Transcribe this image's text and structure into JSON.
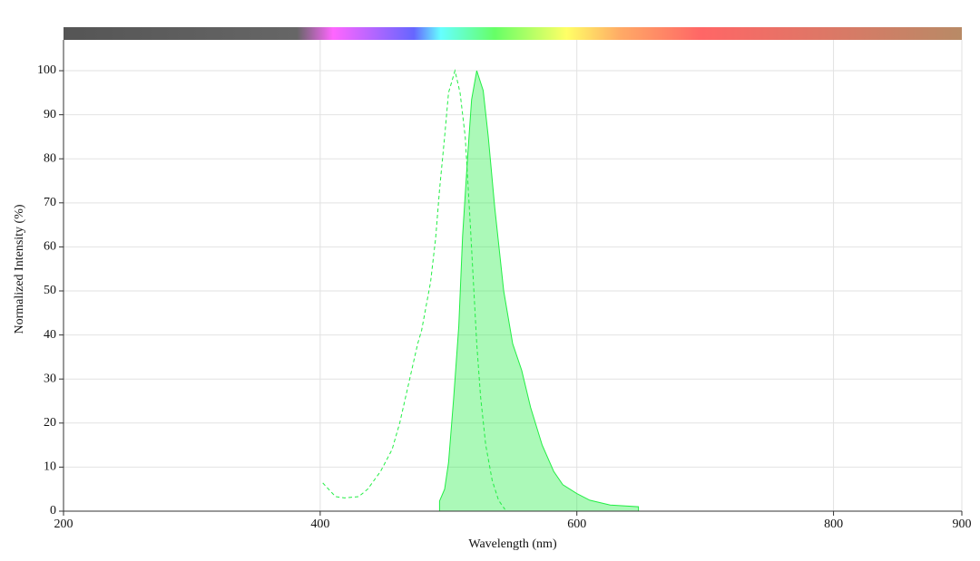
{
  "chart_data": {
    "type": "line",
    "x_label": "Wavelength (nm)",
    "y_label": "Normalized Intensity (%)",
    "xlim": [
      200,
      900
    ],
    "ylim": [
      0,
      107
    ],
    "xticks": [
      200,
      400,
      600,
      800,
      900
    ],
    "yticks": [
      0,
      10,
      20,
      30,
      40,
      50,
      60,
      70,
      80,
      90,
      100
    ],
    "grid": true,
    "series": [
      {
        "color": "#22ee44",
        "dashed": true,
        "fill": false,
        "x": [
          402,
          412,
          419,
          430,
          437,
          447,
          456,
          462,
          469,
          476,
          479,
          486,
          490,
          493,
          497,
          500,
          505,
          509,
          513,
          517,
          522,
          525,
          529,
          534,
          539,
          544
        ],
        "values": [
          6.4,
          3.3,
          3,
          3.3,
          5,
          9,
          14,
          20,
          29,
          38,
          41,
          52,
          62,
          73,
          85,
          95,
          100,
          95,
          85,
          65,
          38,
          26,
          15,
          7,
          2.5,
          0.4
        ]
      },
      {
        "color": "#22ee44",
        "dashed": false,
        "fill": true,
        "x": [
          493,
          497,
          500,
          504,
          508,
          511,
          515,
          518,
          522,
          527,
          531,
          536,
          543,
          550,
          557,
          564,
          573,
          582,
          589,
          600,
          610,
          626,
          648
        ],
        "values": [
          2.3,
          5,
          11,
          25.5,
          42,
          62.5,
          81,
          93.4,
          100,
          95.5,
          85,
          69,
          50,
          38,
          32,
          23.5,
          15,
          9,
          6,
          4,
          2.5,
          1.4,
          1
        ]
      }
    ]
  }
}
